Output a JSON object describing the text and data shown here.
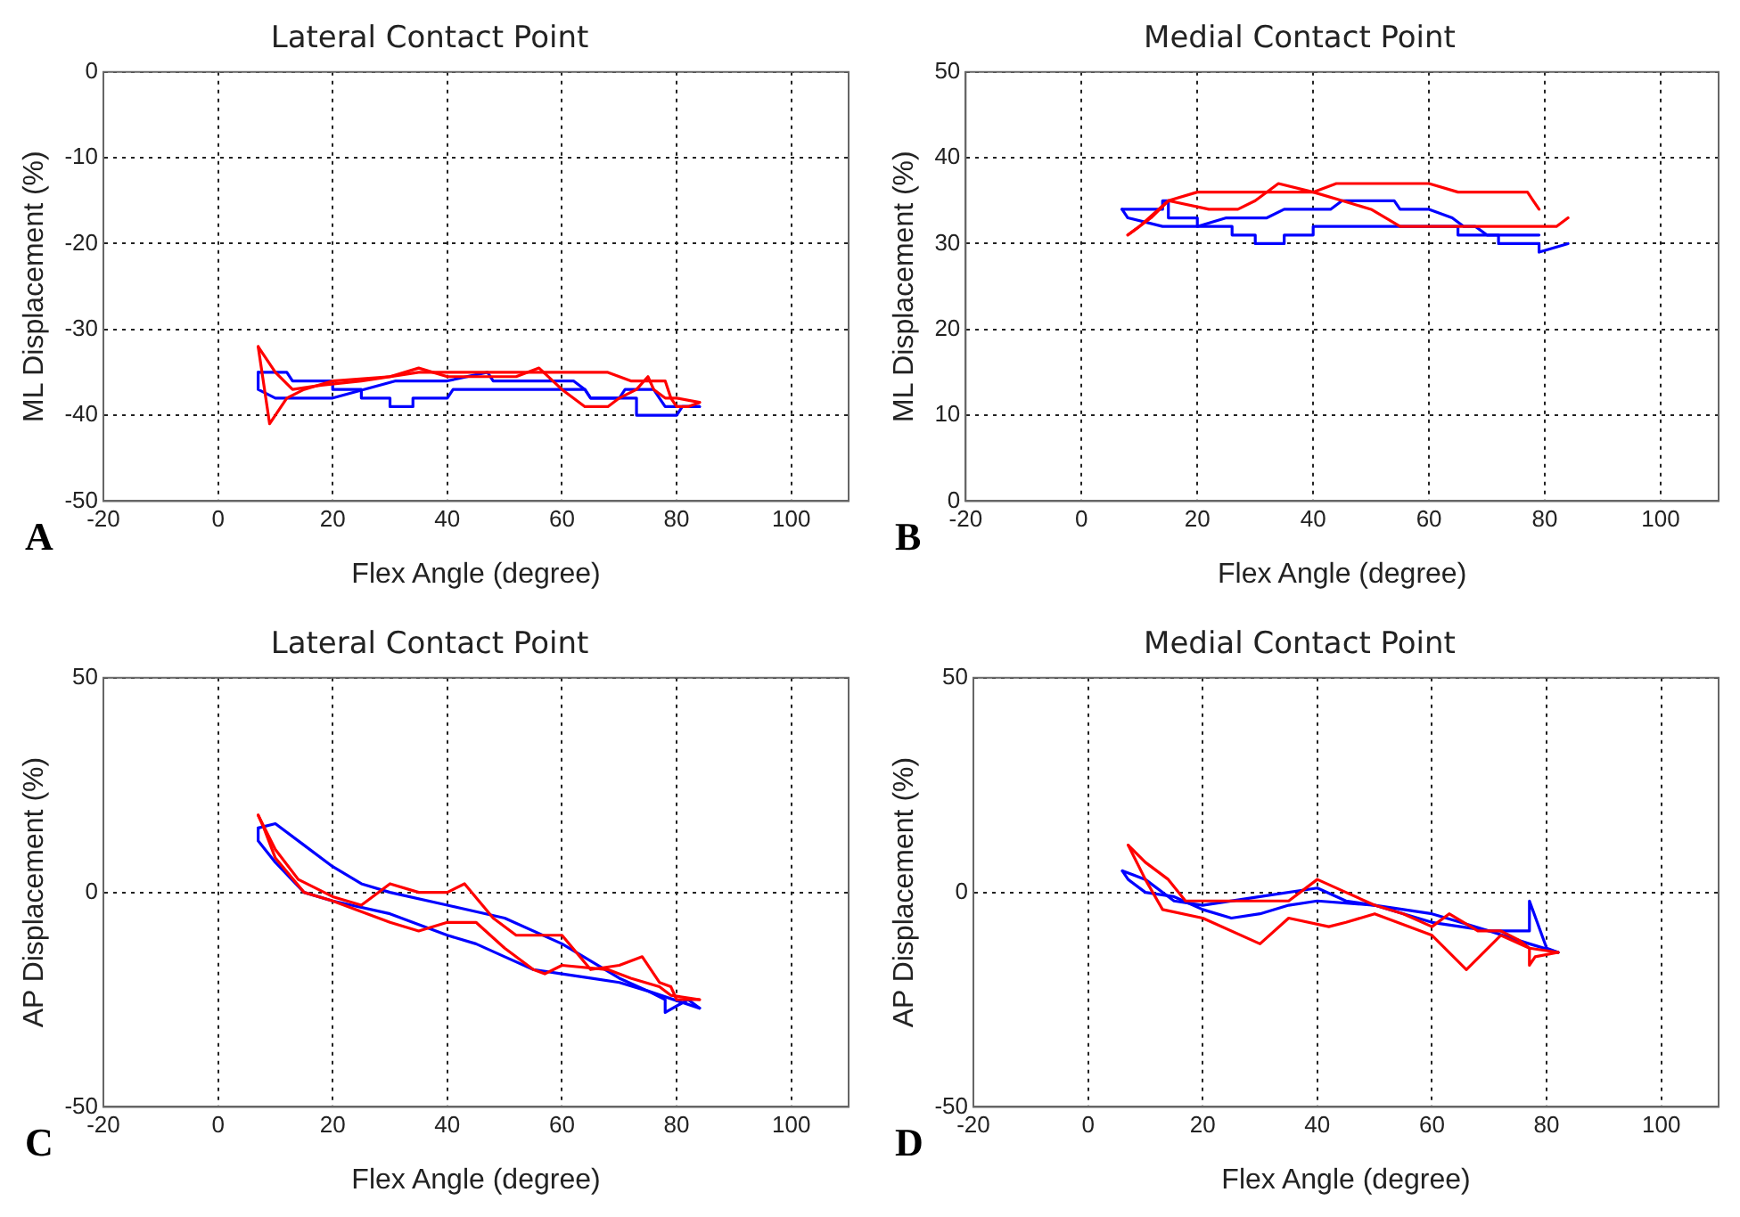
{
  "chart_data": [
    {
      "type": "line",
      "title": "Lateral Contact Point",
      "xlabel": "Flex Angle (degree)",
      "ylabel": "ML Displacement (%)",
      "annotations": [
        "A"
      ],
      "xlim": [
        -20,
        110
      ],
      "xticks": [
        -20,
        0,
        20,
        40,
        60,
        80,
        100
      ],
      "ylim": [
        -50,
        0
      ],
      "yticks": [
        -50,
        -40,
        -30,
        -20,
        -10,
        0
      ],
      "grid": true,
      "series": [
        {
          "color": "#ff0000",
          "x": [
            7,
            10,
            13,
            18,
            25,
            35,
            45,
            55,
            62,
            68,
            72,
            75,
            78,
            79,
            80,
            82,
            84
          ],
          "values": [
            -32,
            -35,
            -37,
            -36.5,
            -36,
            -35,
            -35,
            -35,
            -35,
            -35,
            -36,
            -36,
            -36,
            -38,
            -39,
            -39,
            -38.5
          ]
        },
        {
          "color": "#ff0000",
          "x": [
            7,
            9,
            12,
            15,
            20,
            30,
            35,
            40,
            45,
            52,
            56,
            60,
            64,
            68,
            70,
            73,
            75,
            76,
            78,
            80,
            84
          ],
          "values": [
            -32,
            -41,
            -38,
            -37,
            -36,
            -35.5,
            -34.5,
            -35.5,
            -35.5,
            -35.5,
            -34.5,
            -37,
            -39,
            -39,
            -38,
            -37,
            -35.5,
            -37,
            -38,
            -38,
            -38.5
          ]
        },
        {
          "color": "#0000ff",
          "x": [
            7,
            12,
            13,
            20,
            20,
            25,
            25,
            30,
            30,
            34,
            34,
            40,
            41,
            64,
            65,
            70,
            73,
            73,
            80,
            81,
            84
          ],
          "values": [
            -35,
            -35,
            -36,
            -36,
            -37,
            -37,
            -38,
            -38,
            -39,
            -39,
            -38,
            -38,
            -37,
            -37,
            -38,
            -38,
            -38,
            -40,
            -40,
            -39,
            -39
          ]
        },
        {
          "color": "#0000ff",
          "x": [
            7,
            7,
            10,
            20,
            31,
            40,
            47,
            48,
            62,
            64,
            65,
            70,
            71,
            76,
            77,
            78,
            84
          ],
          "values": [
            -35,
            -37,
            -38,
            -38,
            -36,
            -36,
            -35,
            -36,
            -36,
            -37,
            -38,
            -38,
            -37,
            -37,
            -38,
            -39,
            -39
          ]
        }
      ]
    },
    {
      "type": "line",
      "title": "Medial Contact Point",
      "xlabel": "Flex Angle (degree)",
      "ylabel": "ML Displacement (%)",
      "annotations": [
        "B"
      ],
      "xlim": [
        -20,
        110
      ],
      "xticks": [
        -20,
        0,
        20,
        40,
        60,
        80,
        100
      ],
      "ylim": [
        0,
        50
      ],
      "yticks": [
        0,
        10,
        20,
        30,
        40,
        50
      ],
      "grid": true,
      "series": [
        {
          "color": "#ff0000",
          "x": [
            8,
            12,
            15,
            20,
            40,
            44,
            60,
            65,
            77,
            78,
            79
          ],
          "values": [
            31,
            33,
            35,
            36,
            36,
            37,
            37,
            36,
            36,
            35,
            34
          ]
        },
        {
          "color": "#ff0000",
          "x": [
            8,
            10,
            15,
            22,
            27,
            30,
            34,
            40,
            45,
            50,
            55,
            60,
            70,
            82,
            84
          ],
          "values": [
            31,
            32,
            35,
            34,
            34,
            35,
            37,
            36,
            35,
            34,
            32,
            32,
            32,
            32,
            33
          ]
        },
        {
          "color": "#0000ff",
          "x": [
            7,
            14,
            14,
            15,
            15,
            20,
            20,
            26,
            26,
            30,
            30,
            35,
            35,
            40,
            40,
            65,
            65,
            72,
            72,
            79,
            79,
            84
          ],
          "values": [
            34,
            34,
            35,
            35,
            33,
            33,
            32,
            32,
            31,
            31,
            30,
            30,
            31,
            31,
            32,
            32,
            31,
            31,
            30,
            30,
            29,
            30
          ]
        },
        {
          "color": "#0000ff",
          "x": [
            7,
            8,
            14,
            20,
            25,
            32,
            35,
            43,
            45,
            54,
            55,
            60,
            64,
            66,
            68,
            70,
            79
          ],
          "values": [
            34,
            33,
            32,
            32,
            33,
            33,
            34,
            34,
            35,
            35,
            34,
            34,
            33,
            32,
            32,
            31,
            31
          ]
        }
      ]
    },
    {
      "type": "line",
      "title": "Lateral Contact Point",
      "xlabel": "Flex Angle (degree)",
      "ylabel": "AP Displacement (%)",
      "annotations": [
        "C"
      ],
      "xlim": [
        -20,
        110
      ],
      "xticks": [
        -20,
        0,
        20,
        40,
        60,
        80,
        100
      ],
      "ylim": [
        -50,
        50
      ],
      "yticks": [
        -50,
        0,
        50
      ],
      "grid": true,
      "series": [
        {
          "color": "#ff0000",
          "x": [
            7,
            10,
            14,
            20,
            25,
            30,
            35,
            40,
            43,
            48,
            52,
            60,
            65,
            70,
            74,
            77,
            79,
            80,
            84
          ],
          "values": [
            18,
            10,
            3,
            -1,
            -3,
            2,
            0,
            0,
            2,
            -6,
            -10,
            -10,
            -18,
            -17,
            -15,
            -21,
            -22,
            -25,
            -25
          ]
        },
        {
          "color": "#ff0000",
          "x": [
            7,
            8,
            10,
            15,
            20,
            30,
            35,
            40,
            45,
            50,
            55,
            57,
            60,
            68,
            72,
            77,
            79,
            84
          ],
          "values": [
            18,
            15,
            8,
            0,
            -2,
            -7,
            -9,
            -7,
            -7,
            -13,
            -18,
            -19,
            -17,
            -18,
            -20,
            -22,
            -24,
            -25
          ]
        },
        {
          "color": "#0000ff",
          "x": [
            7,
            10,
            15,
            20,
            25,
            30,
            40,
            50,
            60,
            65,
            70,
            75,
            78,
            78,
            82,
            84
          ],
          "values": [
            15,
            16,
            11,
            6,
            2,
            0,
            -3,
            -6,
            -12,
            -16,
            -20,
            -23,
            -25,
            -28,
            -25,
            -27
          ]
        },
        {
          "color": "#0000ff",
          "x": [
            7,
            7,
            10,
            15,
            20,
            30,
            40,
            45,
            50,
            55,
            60,
            65,
            70,
            75,
            84
          ],
          "values": [
            15,
            12,
            7,
            0,
            -2,
            -5,
            -10,
            -12,
            -15,
            -18,
            -19,
            -20,
            -21,
            -23,
            -27
          ]
        }
      ]
    },
    {
      "type": "line",
      "title": "Medial Contact Point",
      "xlabel": "Flex Angle (degree)",
      "ylabel": "AP Displacement (%)",
      "annotations": [
        "D"
      ],
      "xlim": [
        -20,
        110
      ],
      "xticks": [
        -20,
        0,
        20,
        40,
        60,
        80,
        100
      ],
      "ylim": [
        -50,
        50
      ],
      "yticks": [
        -50,
        0,
        50
      ],
      "grid": true,
      "series": [
        {
          "color": "#ff0000",
          "x": [
            7,
            10,
            14,
            17,
            35,
            40,
            45,
            50,
            55,
            60,
            63,
            68,
            72,
            75,
            77,
            77,
            78,
            82
          ],
          "values": [
            11,
            7,
            3,
            -2,
            -2,
            3,
            0,
            -3,
            -5,
            -8,
            -5,
            -9,
            -9,
            -11,
            -13,
            -17,
            -15,
            -14
          ]
        },
        {
          "color": "#ff0000",
          "x": [
            7,
            10,
            13,
            20,
            30,
            35,
            42,
            45,
            50,
            60,
            66,
            72,
            77,
            82
          ],
          "values": [
            11,
            3,
            -4,
            -6,
            -12,
            -6,
            -8,
            -7,
            -5,
            -10,
            -18,
            -10,
            -13,
            -14
          ]
        },
        {
          "color": "#0000ff",
          "x": [
            6,
            10,
            15,
            20,
            30,
            40,
            45,
            50,
            60,
            65,
            70,
            77,
            77,
            80,
            82
          ],
          "values": [
            5,
            3,
            -2,
            -3,
            -1,
            1,
            -2,
            -3,
            -5,
            -7,
            -9,
            -9,
            -2,
            -13,
            -14
          ]
        },
        {
          "color": "#0000ff",
          "x": [
            6,
            7,
            10,
            15,
            20,
            25,
            30,
            35,
            40,
            50,
            60,
            70,
            77,
            82
          ],
          "values": [
            5,
            3,
            0,
            -1,
            -4,
            -6,
            -5,
            -3,
            -2,
            -3,
            -7,
            -9,
            -12,
            -14
          ]
        }
      ]
    }
  ]
}
